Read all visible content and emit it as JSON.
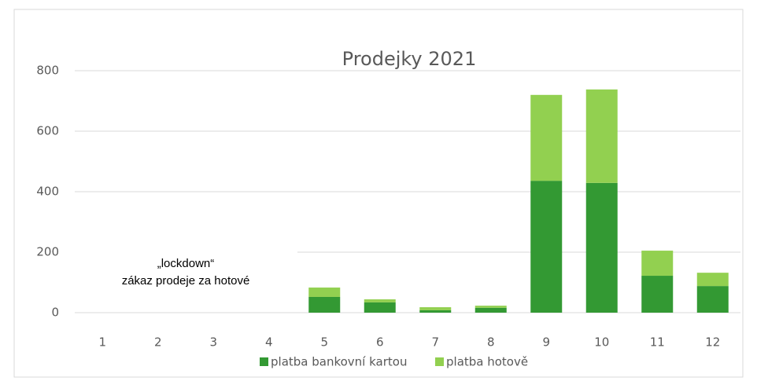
{
  "chart_data": {
    "type": "stacked_bar",
    "title": "Prodejky 2021",
    "categories": [
      "1",
      "2",
      "3",
      "4",
      "5",
      "6",
      "7",
      "8",
      "9",
      "10",
      "11",
      "12"
    ],
    "series": [
      {
        "name": "platba bankovní kartou",
        "color": "#339933",
        "values": [
          0,
          0,
          0,
          0,
          52,
          34,
          8,
          16,
          436,
          429,
          122,
          88
        ]
      },
      {
        "name": "platba hotově",
        "color": "#92d050",
        "values": [
          0,
          0,
          0,
          0,
          31,
          10,
          10,
          7,
          284,
          309,
          83,
          44
        ]
      }
    ],
    "annotations": [
      "„lockdown“",
      "zákaz prodeje za hotové"
    ],
    "ylim": [
      0,
      800
    ],
    "yticks": [
      0,
      200,
      400,
      600,
      800
    ],
    "grid": true,
    "legend": "bottom"
  }
}
